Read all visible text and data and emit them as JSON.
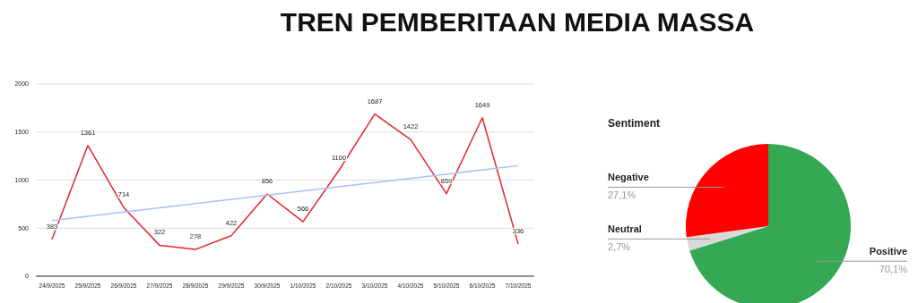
{
  "chart_data": [
    {
      "type": "line",
      "title": "TREN PEMBERITAAN MEDIA MASSA",
      "categories": [
        "24/9/2025",
        "25/9/2025",
        "26/9/2025",
        "27/9/2025",
        "28/9/2025",
        "29/9/2025",
        "30/9/2025",
        "1/10/2025",
        "2/10/2025",
        "3/10/2025",
        "4/10/2025",
        "5/10/2025",
        "6/10/2025",
        "7/10/2025"
      ],
      "series": [
        {
          "color": "#e0262b",
          "values": [
            383,
            1361,
            714,
            322,
            278,
            422,
            856,
            566,
            1100,
            1687,
            1422,
            859,
            1649,
            336
          ],
          "value_labels": [
            "383",
            "1361",
            "714",
            "322",
            "278",
            "422",
            "856",
            "566",
            "1100",
            "1687",
            "1422",
            "859",
            "1649",
            "336"
          ]
        },
        {
          "type": "line",
          "color": "#a4c2f4",
          "x": [
            "24/9/2025",
            "7/10/2025"
          ],
          "values": [
            580,
            1150
          ]
        }
      ],
      "ylim": [
        0,
        2000
      ],
      "yticks": [
        0,
        500,
        1000,
        1500,
        2000
      ],
      "grid": "y",
      "marker": "none",
      "line_style": "solid"
    },
    {
      "type": "pie",
      "title": "Sentiment",
      "categories": [
        "Positive",
        "Neutral",
        "Negative"
      ],
      "values": [
        70.1,
        2.7,
        27.1
      ],
      "colors": [
        "#34a853",
        "#d9d9d9",
        "#ff0000"
      ],
      "value_labels": [
        "70,1%",
        "2,7%",
        "27,1%"
      ]
    }
  ]
}
